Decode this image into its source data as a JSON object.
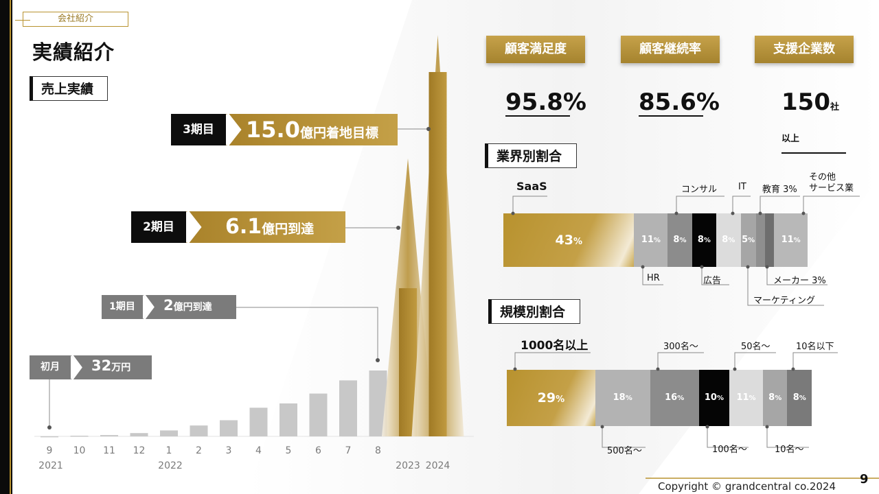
{
  "header": {
    "tag": "会社紹介",
    "title": "実績紹介",
    "section_sales": "売上実績",
    "section_industry": "業界別割合",
    "section_scale": "規模別割合"
  },
  "milestones": {
    "m0": {
      "tag": "初月",
      "value": "32",
      "unit": "万円"
    },
    "m1": {
      "tag": "1期目",
      "value": "2",
      "unit": "億円到達"
    },
    "m2": {
      "tag": "2期目",
      "value": "6.1",
      "unit": "億円到達"
    },
    "m3": {
      "tag": "3期目",
      "value": "15.0",
      "unit": "億円着地目標"
    }
  },
  "stats": [
    {
      "label": "顧客満足度",
      "value": "95.8%",
      "unit": ""
    },
    {
      "label": "顧客継続率",
      "value": "85.6%",
      "unit": ""
    },
    {
      "label": "支援企業数",
      "value": "150",
      "unit": "社以上"
    }
  ],
  "chart_data": [
    {
      "type": "bar",
      "title": "売上実績",
      "categories": [
        "9",
        "10",
        "11",
        "12",
        "1",
        "2",
        "3",
        "4",
        "5",
        "6",
        "7",
        "8",
        "2023",
        "2024"
      ],
      "year_labels": {
        "9": "2021",
        "1": "2022"
      },
      "values": [
        0.0032,
        0.02,
        0.04,
        0.1,
        0.18,
        0.33,
        0.49,
        0.87,
        1.0,
        1.3,
        1.7,
        2.0,
        6.1,
        15.0
      ]
    },
    {
      "type": "bar",
      "title": "業界別割合",
      "stacked": true,
      "series": [
        {
          "name": "SaaS",
          "value": 43,
          "color": "#b8922e"
        },
        {
          "name": "HR",
          "value": 11,
          "color": "#b3b3b3"
        },
        {
          "name": "コンサル",
          "value": 8,
          "color": "#8c8c8c"
        },
        {
          "name": "広告",
          "value": 8,
          "color": "#050505"
        },
        {
          "name": "IT",
          "value": 8,
          "color": "#dcdcdc"
        },
        {
          "name": "マーケティング",
          "value": 5,
          "color": "#a6a6a6"
        },
        {
          "name": "教育 3%",
          "value": 3,
          "color": "#8f8f8f"
        },
        {
          "name": "メーカー 3%",
          "value": 3,
          "color": "#6e6e6e"
        },
        {
          "name": "その他サービス業",
          "value": 11,
          "color": "#b8b8b8"
        }
      ]
    },
    {
      "type": "bar",
      "title": "規模別割合",
      "stacked": true,
      "series": [
        {
          "name": "1000名以上",
          "value": 29,
          "color": "#b8922e"
        },
        {
          "name": "500名～",
          "value": 18,
          "color": "#b3b3b3"
        },
        {
          "name": "300名～",
          "value": 16,
          "color": "#8c8c8c"
        },
        {
          "name": "100名～",
          "value": 10,
          "color": "#050505"
        },
        {
          "name": "50名～",
          "value": 11,
          "color": "#dcdcdc"
        },
        {
          "name": "10名～",
          "value": 8,
          "color": "#a6a6a6"
        },
        {
          "name": "10名以下",
          "value": 8,
          "color": "#7a7a7a"
        }
      ]
    }
  ],
  "seg_labels": {
    "industry": [
      "43",
      "11",
      "8",
      "8",
      "8",
      "5",
      "",
      "",
      "11"
    ],
    "scale": [
      "29",
      "18",
      "16",
      "10",
      "11",
      "8",
      "8"
    ],
    "pct": "%"
  },
  "industry_labels": {
    "saas": "SaaS",
    "consul": "コンサル",
    "it": "IT",
    "edu": "教育 3%",
    "other1": "その他",
    "other2": "サービス業",
    "hr": "HR",
    "ad": "広告",
    "maker": "メーカー 3%",
    "mkt": "マーケティング"
  },
  "scale_labels": {
    "l1000": "1000名以上",
    "l300": "300名～",
    "l50": "50名～",
    "l10below": "10名以下",
    "l500": "500名～",
    "l100": "100名～",
    "l10": "10名～"
  },
  "footer": {
    "copyright": "Copyright © grandcentral co.2024",
    "page": "9"
  }
}
